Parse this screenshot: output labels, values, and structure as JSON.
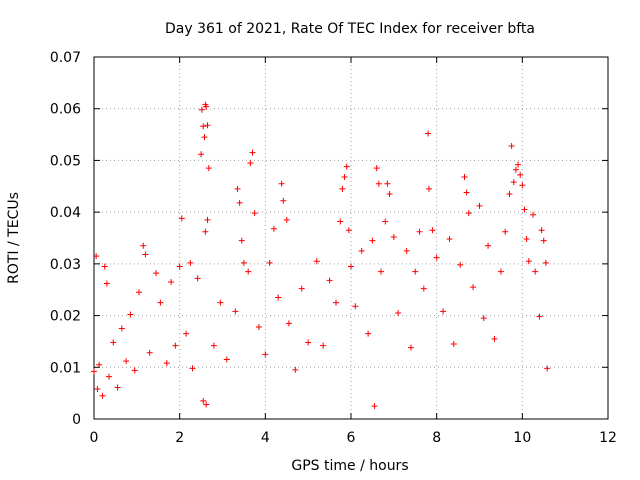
{
  "chart_data": {
    "type": "scatter",
    "title": "Day 361 of 2021, Rate Of TEC Index for receiver bfta",
    "xlabel": "GPS time / hours",
    "ylabel": "ROTI / TECUs",
    "xlim": [
      0,
      12
    ],
    "ylim": [
      0,
      0.07
    ],
    "x_ticks": [
      0,
      2,
      4,
      6,
      8,
      10,
      12
    ],
    "y_ticks": [
      0,
      0.01,
      0.02,
      0.03,
      0.04,
      0.05,
      0.06,
      0.07
    ],
    "x_tick_labels": [
      "0",
      "2",
      "4",
      "6",
      "8",
      "10",
      "12"
    ],
    "y_tick_labels": [
      "0",
      "0.01",
      "0.02",
      "0.03",
      "0.04",
      "0.05",
      "0.06",
      "0.07"
    ],
    "grid": true,
    "marker": "+",
    "color": "#ff0000",
    "data_x_range": [
      0,
      10.6
    ],
    "series": [
      {
        "points": [
          [
            0.0,
            0.0092
          ],
          [
            0.05,
            0.0315
          ],
          [
            0.08,
            0.0058
          ],
          [
            0.12,
            0.0105
          ],
          [
            0.2,
            0.0045
          ],
          [
            0.25,
            0.0295
          ],
          [
            0.3,
            0.0262
          ],
          [
            0.35,
            0.0082
          ],
          [
            0.45,
            0.0148
          ],
          [
            0.55,
            0.0061
          ],
          [
            0.65,
            0.0175
          ],
          [
            0.75,
            0.0112
          ],
          [
            0.85,
            0.0202
          ],
          [
            0.95,
            0.0094
          ],
          [
            1.05,
            0.0245
          ],
          [
            1.15,
            0.0335
          ],
          [
            1.2,
            0.0318
          ],
          [
            1.3,
            0.0128
          ],
          [
            1.45,
            0.0282
          ],
          [
            1.55,
            0.0225
          ],
          [
            1.7,
            0.0108
          ],
          [
            1.8,
            0.0265
          ],
          [
            1.9,
            0.0142
          ],
          [
            2.0,
            0.0295
          ],
          [
            2.05,
            0.0388
          ],
          [
            2.15,
            0.0165
          ],
          [
            2.25,
            0.0302
          ],
          [
            2.3,
            0.0098
          ],
          [
            2.42,
            0.0272
          ],
          [
            2.5,
            0.0512
          ],
          [
            2.52,
            0.0598
          ],
          [
            2.55,
            0.0566
          ],
          [
            2.58,
            0.0545
          ],
          [
            2.6,
            0.0608
          ],
          [
            2.62,
            0.0604
          ],
          [
            2.65,
            0.0568
          ],
          [
            2.68,
            0.0485
          ],
          [
            2.6,
            0.0362
          ],
          [
            2.65,
            0.0385
          ],
          [
            2.55,
            0.0035
          ],
          [
            2.62,
            0.0028
          ],
          [
            2.8,
            0.0142
          ],
          [
            2.95,
            0.0225
          ],
          [
            3.1,
            0.0115
          ],
          [
            3.3,
            0.0208
          ],
          [
            3.35,
            0.0445
          ],
          [
            3.4,
            0.0418
          ],
          [
            3.45,
            0.0345
          ],
          [
            3.5,
            0.0302
          ],
          [
            3.6,
            0.0285
          ],
          [
            3.65,
            0.0495
          ],
          [
            3.7,
            0.0515
          ],
          [
            3.75,
            0.0398
          ],
          [
            3.85,
            0.0178
          ],
          [
            4.0,
            0.0125
          ],
          [
            4.1,
            0.0302
          ],
          [
            4.2,
            0.0368
          ],
          [
            4.3,
            0.0235
          ],
          [
            4.38,
            0.0455
          ],
          [
            4.42,
            0.0422
          ],
          [
            4.5,
            0.0385
          ],
          [
            4.55,
            0.0185
          ],
          [
            4.7,
            0.0095
          ],
          [
            4.85,
            0.0252
          ],
          [
            5.0,
            0.0148
          ],
          [
            5.2,
            0.0305
          ],
          [
            5.35,
            0.0142
          ],
          [
            5.5,
            0.0268
          ],
          [
            5.65,
            0.0225
          ],
          [
            5.75,
            0.0382
          ],
          [
            5.8,
            0.0445
          ],
          [
            5.85,
            0.0468
          ],
          [
            5.9,
            0.0488
          ],
          [
            5.95,
            0.0365
          ],
          [
            6.0,
            0.0295
          ],
          [
            6.1,
            0.0218
          ],
          [
            6.25,
            0.0325
          ],
          [
            6.4,
            0.0165
          ],
          [
            6.5,
            0.0345
          ],
          [
            6.55,
            0.0025
          ],
          [
            6.6,
            0.0485
          ],
          [
            6.65,
            0.0455
          ],
          [
            6.7,
            0.0285
          ],
          [
            6.8,
            0.0382
          ],
          [
            6.85,
            0.0455
          ],
          [
            6.9,
            0.0435
          ],
          [
            7.0,
            0.0352
          ],
          [
            7.1,
            0.0205
          ],
          [
            7.3,
            0.0325
          ],
          [
            7.4,
            0.0138
          ],
          [
            7.5,
            0.0285
          ],
          [
            7.6,
            0.0362
          ],
          [
            7.7,
            0.0252
          ],
          [
            7.8,
            0.0552
          ],
          [
            7.82,
            0.0445
          ],
          [
            7.9,
            0.0365
          ],
          [
            8.0,
            0.0312
          ],
          [
            8.15,
            0.0208
          ],
          [
            8.3,
            0.0348
          ],
          [
            8.4,
            0.0145
          ],
          [
            8.55,
            0.0298
          ],
          [
            8.65,
            0.0468
          ],
          [
            8.7,
            0.0438
          ],
          [
            8.75,
            0.0398
          ],
          [
            8.85,
            0.0255
          ],
          [
            9.0,
            0.0412
          ],
          [
            9.1,
            0.0195
          ],
          [
            9.2,
            0.0335
          ],
          [
            9.35,
            0.0155
          ],
          [
            9.5,
            0.0285
          ],
          [
            9.6,
            0.0362
          ],
          [
            9.7,
            0.0435
          ],
          [
            9.75,
            0.0528
          ],
          [
            9.8,
            0.0458
          ],
          [
            9.85,
            0.0482
          ],
          [
            9.9,
            0.0492
          ],
          [
            9.95,
            0.0472
          ],
          [
            10.0,
            0.0452
          ],
          [
            10.05,
            0.0405
          ],
          [
            10.1,
            0.0348
          ],
          [
            10.15,
            0.0305
          ],
          [
            10.25,
            0.0395
          ],
          [
            10.3,
            0.0285
          ],
          [
            10.4,
            0.0198
          ],
          [
            10.45,
            0.0365
          ],
          [
            10.5,
            0.0345
          ],
          [
            10.55,
            0.0302
          ],
          [
            10.58,
            0.0098
          ]
        ]
      }
    ]
  }
}
